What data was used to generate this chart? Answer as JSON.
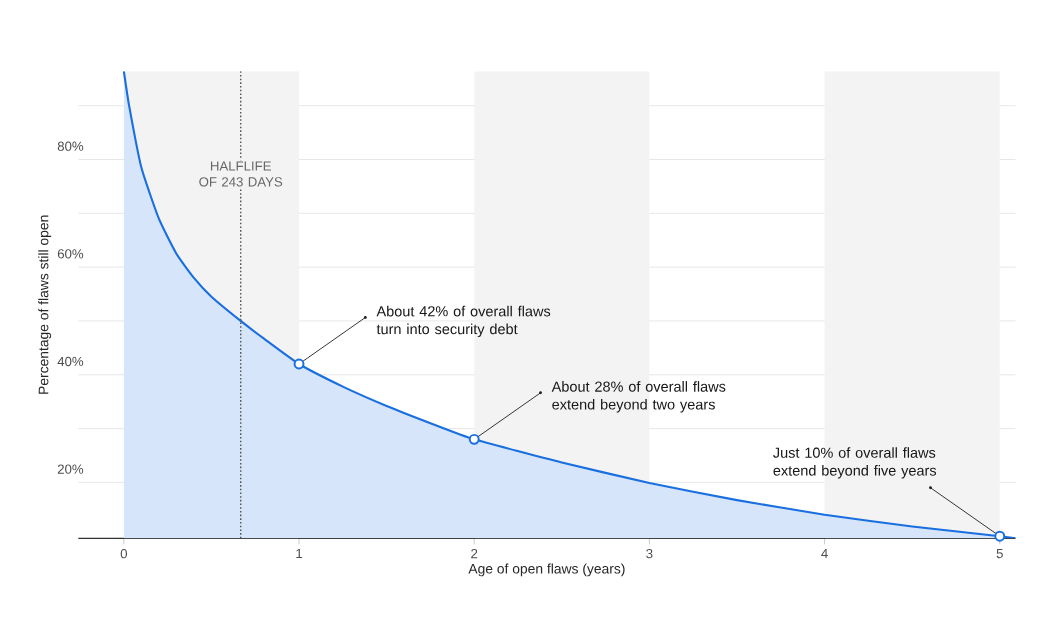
{
  "chart_data": {
    "type": "area",
    "xlabel": "Age of open flaws (years)",
    "ylabel": "Percentage of flaws still open",
    "xlim": [
      -0.26,
      5.09
    ],
    "ylim": [
      9.6,
      96.4
    ],
    "xticks": [
      0,
      1,
      2,
      3,
      4,
      5
    ],
    "yticks": [
      {
        "value": 20,
        "label": "20%"
      },
      {
        "value": 30,
        "label": null
      },
      {
        "value": 40,
        "label": "40%"
      },
      {
        "value": 50,
        "label": null
      },
      {
        "value": 60,
        "label": "60%"
      },
      {
        "value": 70,
        "label": null
      },
      {
        "value": 80,
        "label": "80%"
      },
      {
        "value": 90,
        "label": null
      }
    ],
    "grid": "y",
    "series": [
      {
        "color": "#1a6fe0",
        "x": [
          0,
          0.03,
          0.1,
          0.2,
          0.3,
          0.4,
          0.5,
          0.667,
          0.8,
          1,
          1.25,
          1.5,
          1.75,
          2,
          2.5,
          3,
          3.5,
          4,
          4.5,
          5,
          5.09
        ],
        "values": [
          96.4,
          90,
          78.5,
          69,
          62.5,
          58,
          54.5,
          50,
          46.7,
          42,
          37.8,
          34.2,
          31,
          28,
          23.7,
          19.9,
          16.7,
          14,
          11.8,
          10,
          9.6
        ]
      },
      {
        "type": "scatter",
        "color": "#1a6fe0",
        "marker": "circle",
        "x": [
          1,
          2,
          5
        ],
        "values": [
          42,
          28,
          10
        ]
      }
    ],
    "ref_lines": [
      {
        "axis": "x",
        "value": 0.667,
        "label": "HALFLIFE OF 243 DAYS",
        "color": "#555555",
        "line_style": "dotted"
      }
    ],
    "bands": [
      {
        "axis": "x",
        "from": 0,
        "to": 1,
        "color": "#f3f3f3"
      },
      {
        "axis": "x",
        "from": 2,
        "to": 3,
        "color": "#f3f3f3"
      },
      {
        "axis": "x",
        "from": 4,
        "to": 5,
        "color": "#f3f3f3"
      }
    ],
    "annotations": [
      {
        "text": "About 42% of overall flaws turn into security debt",
        "x": 1,
        "y": 42
      },
      {
        "text": "About 28% of overall flaws extend beyond two years",
        "x": 2,
        "y": 28
      },
      {
        "text": "Just 10% of overall flaws extend beyond five years",
        "x": 5,
        "y": 10
      }
    ]
  }
}
